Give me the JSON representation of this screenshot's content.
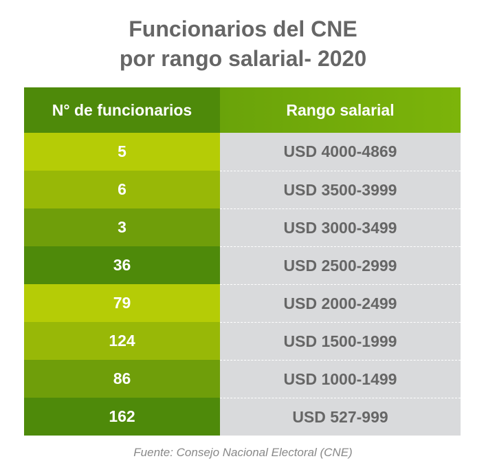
{
  "header": {
    "title_lines": [
      "Funcionarios del CNE",
      "por rango salarial- 2020"
    ]
  },
  "table": {
    "columns": [
      "N° de funcionarios",
      "Rango salarial"
    ],
    "rows": [
      [
        5,
        "USD 4000-4869"
      ],
      [
        6,
        "USD 3500-3999"
      ],
      [
        3,
        "USD 3000-3499"
      ],
      [
        36,
        "USD 2500-2999"
      ],
      [
        79,
        "USD 2000-2499"
      ],
      [
        124,
        "USD 1500-1999"
      ],
      [
        86,
        "USD 1000-1499"
      ],
      [
        162,
        "USD 527-999"
      ]
    ]
  },
  "footer": {
    "source": "Fuente: Consejo Nacional Electoral (CNE)"
  }
}
